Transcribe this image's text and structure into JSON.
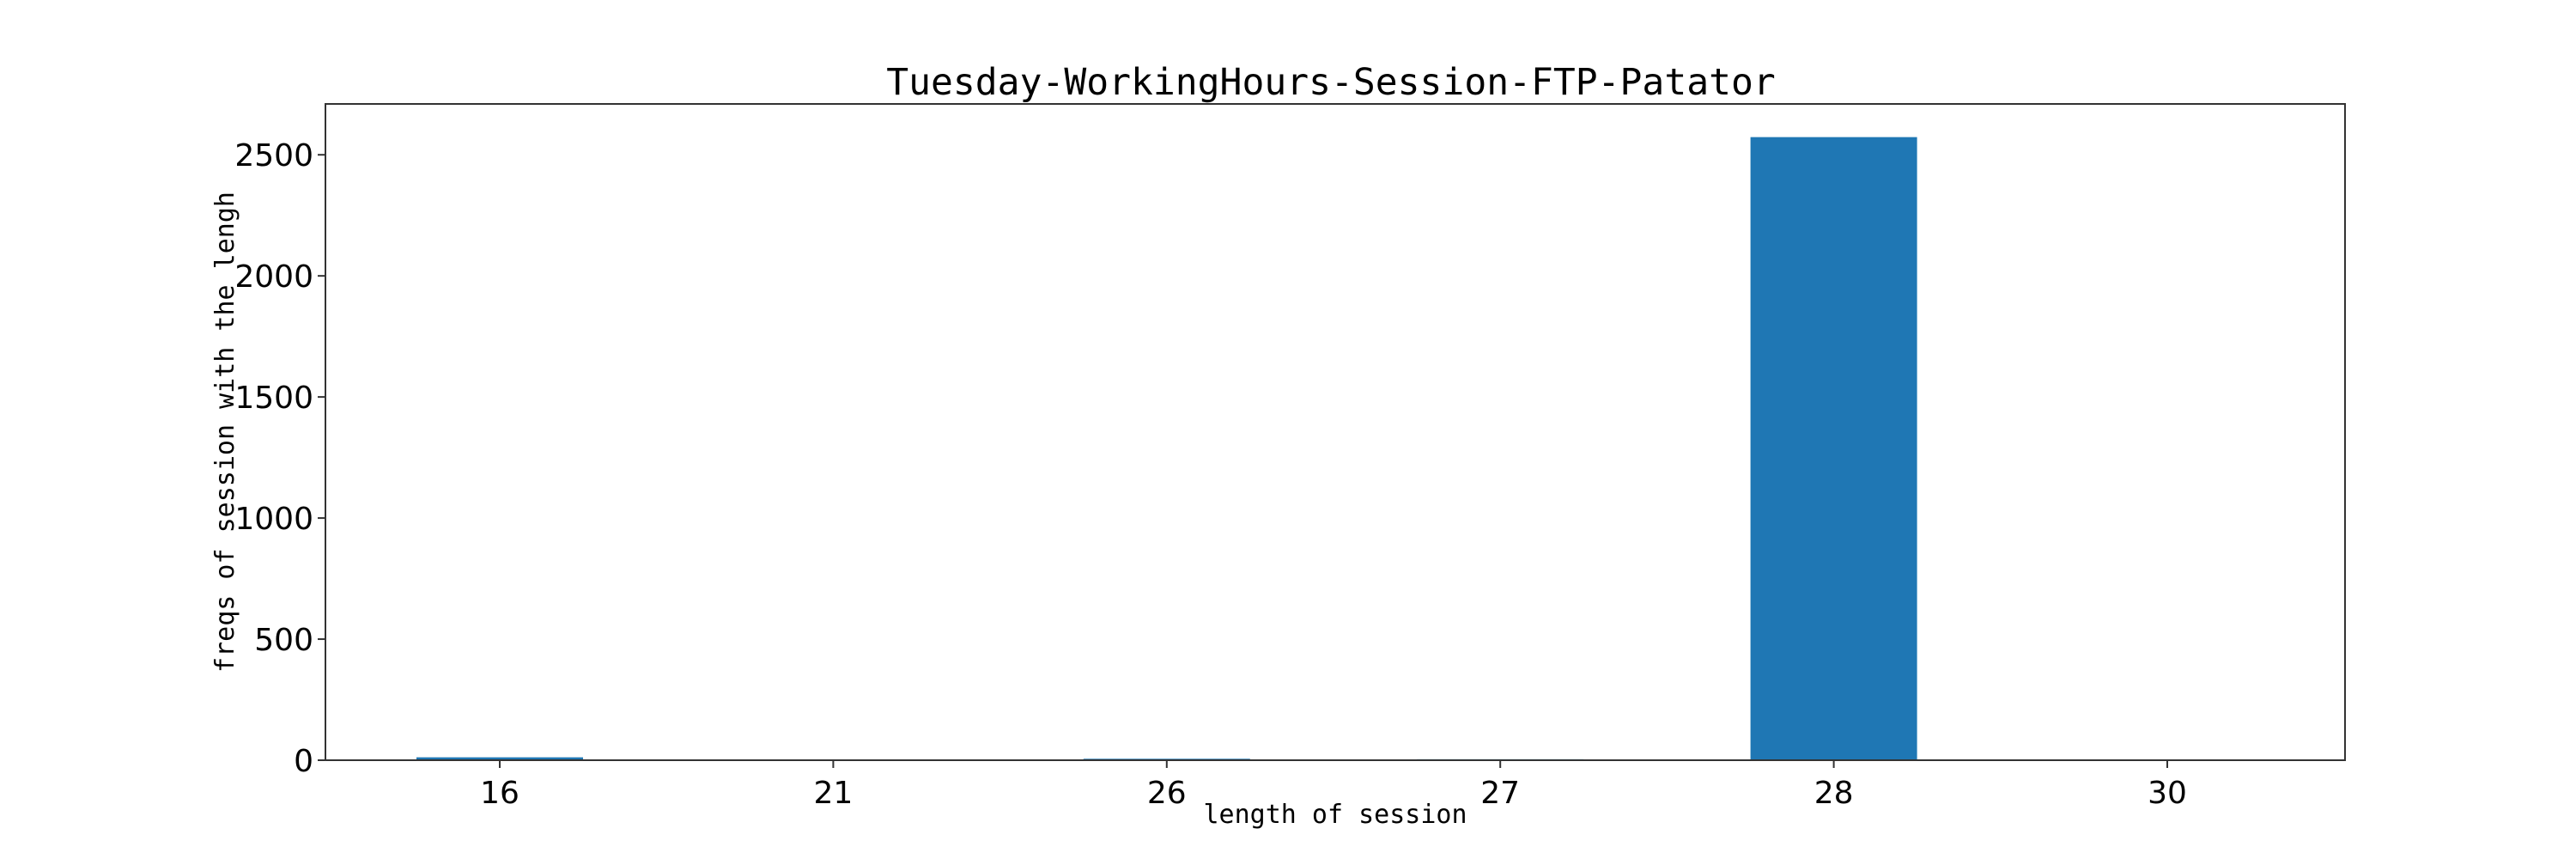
{
  "chart_data": {
    "type": "bar",
    "title": "Tuesday-WorkingHours-Session-FTP-Patator",
    "xlabel": "length of session",
    "ylabel": "freqs of session with the lengh",
    "categories": [
      "16",
      "21",
      "26",
      "27",
      "28",
      "30"
    ],
    "values": [
      12,
      2,
      6,
      4,
      2573,
      1
    ],
    "ylim": [
      0,
      2710
    ],
    "yticks": [
      0,
      500,
      1000,
      1500,
      2000,
      2500
    ],
    "bar_color": "#1f77b4",
    "grid": false,
    "legend": "none"
  }
}
